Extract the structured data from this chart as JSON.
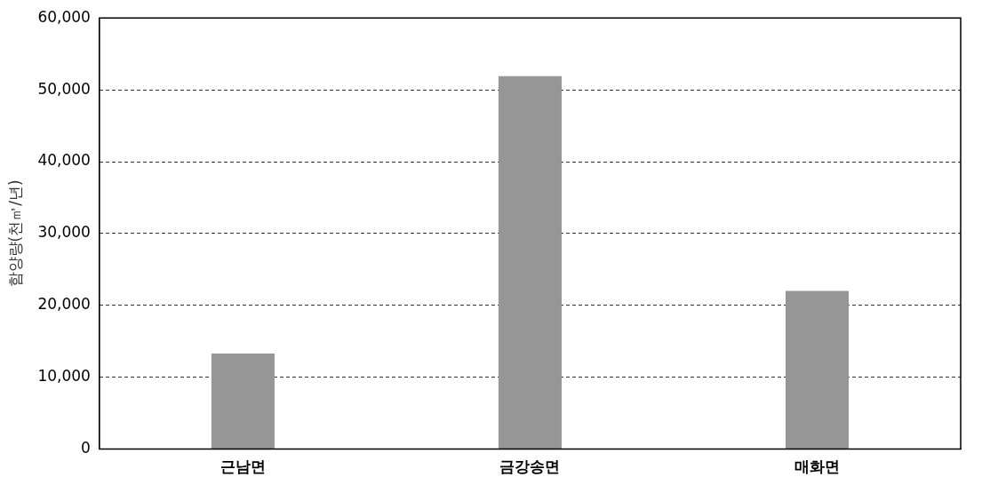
{
  "chart_data": {
    "type": "bar",
    "ylabel": "함양량(천㎥/년)",
    "categories": [
      "근남면",
      "금강송면",
      "매화면"
    ],
    "values": [
      13300,
      51900,
      22000
    ],
    "color": "#969696",
    "ylim": [
      0,
      60000
    ],
    "yticks": [
      {
        "value": 0,
        "label": "0"
      },
      {
        "value": 10000,
        "label": "10,000"
      },
      {
        "value": 20000,
        "label": "20,000"
      },
      {
        "value": 30000,
        "label": "30,000"
      },
      {
        "value": 40000,
        "label": "40,000"
      },
      {
        "value": 50000,
        "label": "50,000"
      },
      {
        "value": 60000,
        "label": "60,000"
      }
    ],
    "grid": "y",
    "legend": false
  }
}
